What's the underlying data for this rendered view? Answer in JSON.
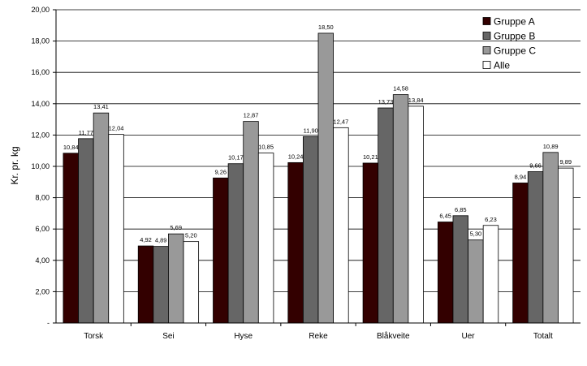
{
  "chart_data": {
    "type": "bar",
    "ylabel": "Kr. pr. kg",
    "ylim": [
      0,
      20
    ],
    "grid": true,
    "legend_position": "top-right",
    "y_tick_labels": [
      "-",
      "2,00",
      "4,00",
      "6,00",
      "8,00",
      "10,00",
      "12,00",
      "14,00",
      "16,00",
      "18,00",
      "20,00"
    ],
    "categories": [
      "Torsk",
      "Sei",
      "Hyse",
      "Reke",
      "Blåkveite",
      "Uer",
      "Totalt"
    ],
    "series": [
      {
        "name": "Gruppe A",
        "color": "#330000",
        "values": [
          10.84,
          4.92,
          9.26,
          10.24,
          10.21,
          6.45,
          8.94
        ],
        "labels": [
          "10,84",
          "4,92",
          "9,26",
          "10,24",
          "10,21",
          "6,45",
          "8,94"
        ]
      },
      {
        "name": "Gruppe B",
        "color": "#666666",
        "values": [
          11.77,
          4.89,
          10.17,
          11.9,
          13.73,
          6.85,
          9.66
        ],
        "labels": [
          "11,77",
          "4,89",
          "10,17",
          "11,90",
          "13,73",
          "6,85",
          "9,66"
        ]
      },
      {
        "name": "Gruppe C",
        "color": "#999999",
        "values": [
          13.41,
          5.69,
          12.87,
          18.5,
          14.58,
          5.3,
          10.89
        ],
        "labels": [
          "13,41",
          "5,69",
          "12,87",
          "18,50",
          "14,58",
          "5,30",
          "10,89"
        ]
      },
      {
        "name": "Alle",
        "color": "#ffffff",
        "values": [
          12.04,
          5.2,
          10.85,
          12.47,
          13.84,
          6.23,
          9.89
        ],
        "labels": [
          "12,04",
          "5,20",
          "10,85",
          "12,47",
          "13,84",
          "6,23",
          "9,89"
        ]
      }
    ]
  }
}
